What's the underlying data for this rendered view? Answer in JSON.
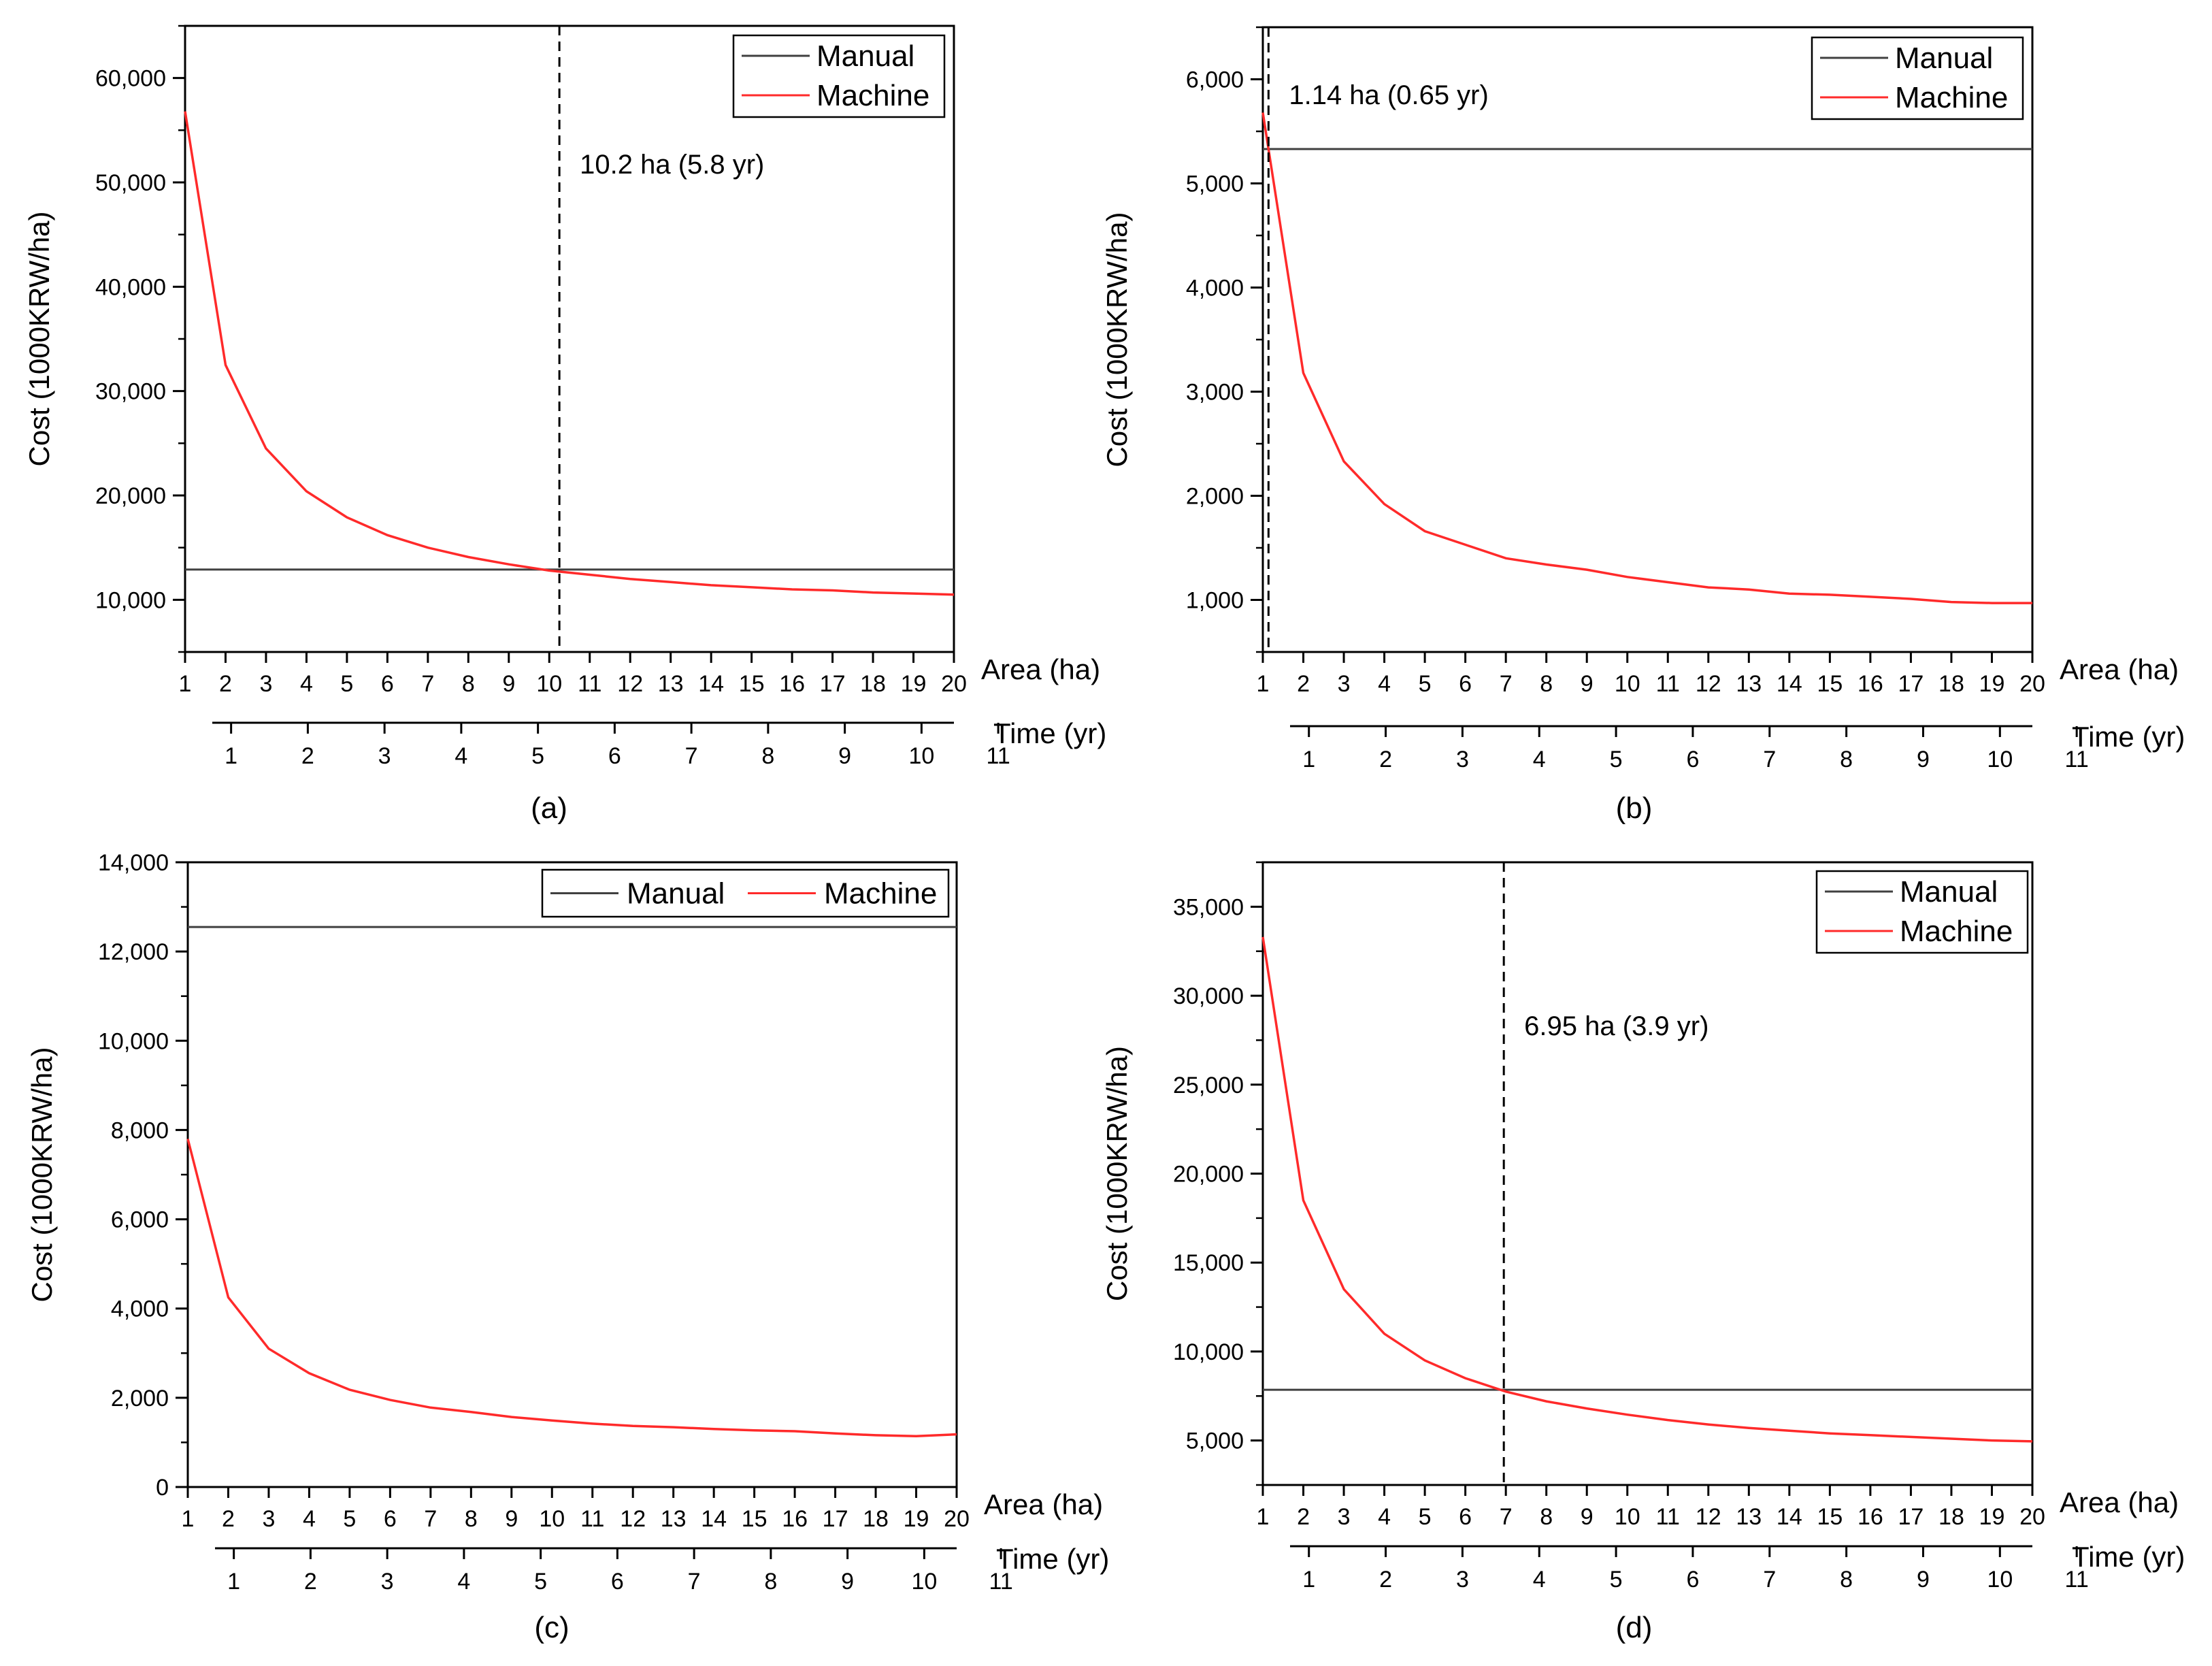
{
  "chart_data": [
    {
      "type": "line",
      "panel": "(a)",
      "ylabel": "Cost (1000KRW/ha)",
      "xlabel": "Area (ha)",
      "x2label": "Time (yr)",
      "xlim": [
        1,
        20
      ],
      "ylim": [
        5000,
        65000
      ],
      "yticks": [
        10000,
        20000,
        30000,
        40000,
        50000,
        60000
      ],
      "ytick_labels": [
        "10,000",
        "20,000",
        "30,000",
        "40,000",
        "50,000",
        "60,000"
      ],
      "yminor": [
        5000,
        15000,
        25000,
        35000,
        45000,
        55000,
        65000
      ],
      "xticks": [
        1,
        2,
        3,
        4,
        5,
        6,
        7,
        8,
        9,
        10,
        11,
        12,
        13,
        14,
        15,
        16,
        17,
        18,
        19,
        20
      ],
      "xtick_labels": [
        "1",
        "2",
        "3",
        "4",
        "5",
        "6",
        "7",
        "8",
        "9",
        "10",
        "11",
        "12",
        "13",
        "14",
        "15",
        "16",
        "17",
        "18",
        "19",
        "20"
      ],
      "t_ticks": [
        1,
        2,
        3,
        4,
        5,
        6,
        7,
        8,
        9,
        10,
        11
      ],
      "t_tick_labels": [
        "1",
        "2",
        "3",
        "4",
        "5",
        "6",
        "7",
        "8",
        "9",
        "10",
        "11"
      ],
      "legend": [
        "Manual",
        "Machine"
      ],
      "legend_layout": "stacked",
      "series": [
        {
          "name": "Manual",
          "color": "#404040",
          "x": [
            1,
            20
          ],
          "y": [
            12900,
            12900
          ]
        },
        {
          "name": "Machine",
          "color": "#ff2a2a",
          "x": [
            1,
            2,
            3,
            4,
            5,
            6,
            7,
            8,
            9,
            10,
            11,
            12,
            13,
            14,
            15,
            16,
            17,
            18,
            19,
            20
          ],
          "y": [
            56800,
            32500,
            24500,
            20400,
            17900,
            16200,
            15000,
            14100,
            13400,
            12800,
            12400,
            12000,
            11700,
            11400,
            11200,
            11000,
            10900,
            10700,
            10600,
            10500
          ]
        }
      ],
      "crossover_x": 10.25,
      "annotation": "10.2 ha (5.8 yr)"
    },
    {
      "type": "line",
      "panel": "(b)",
      "ylabel": "Cost (1000KRW/ha)",
      "xlabel": "Area (ha)",
      "x2label": "Time (yr)",
      "xlim": [
        1,
        20
      ],
      "ylim": [
        500,
        6500
      ],
      "yticks": [
        1000,
        2000,
        3000,
        4000,
        5000,
        6000
      ],
      "ytick_labels": [
        "1,000",
        "2,000",
        "3,000",
        "4,000",
        "5,000",
        "6,000"
      ],
      "yminor": [
        500,
        1500,
        2500,
        3500,
        4500,
        5500,
        6500
      ],
      "xticks": [
        1,
        2,
        3,
        4,
        5,
        6,
        7,
        8,
        9,
        10,
        11,
        12,
        13,
        14,
        15,
        16,
        17,
        18,
        19,
        20
      ],
      "xtick_labels": [
        "1",
        "2",
        "3",
        "4",
        "5",
        "6",
        "7",
        "8",
        "9",
        "10",
        "11",
        "12",
        "13",
        "14",
        "15",
        "16",
        "17",
        "18",
        "19",
        "20"
      ],
      "t_ticks": [
        1,
        2,
        3,
        4,
        5,
        6,
        7,
        8,
        9,
        10,
        11
      ],
      "t_tick_labels": [
        "1",
        "2",
        "3",
        "4",
        "5",
        "6",
        "7",
        "8",
        "9",
        "10",
        "11"
      ],
      "legend": [
        "Manual",
        "Machine"
      ],
      "legend_layout": "stacked",
      "series": [
        {
          "name": "Manual",
          "color": "#404040",
          "x": [
            1,
            20
          ],
          "y": [
            5330,
            5330
          ]
        },
        {
          "name": "Machine",
          "color": "#ff2a2a",
          "x": [
            1,
            2,
            3,
            4,
            5,
            6,
            7,
            8,
            9,
            10,
            11,
            12,
            13,
            14,
            15,
            16,
            17,
            18,
            19,
            20
          ],
          "y": [
            5680,
            3180,
            2330,
            1920,
            1660,
            1530,
            1400,
            1340,
            1290,
            1220,
            1170,
            1120,
            1100,
            1060,
            1050,
            1030,
            1010,
            980,
            970,
            970
          ]
        }
      ],
      "crossover_x": 1.14,
      "annotation": "1.14 ha (0.65 yr)"
    },
    {
      "type": "line",
      "panel": "(c)",
      "ylabel": "Cost (1000KRW/ha)",
      "xlabel": "Area (ha)",
      "x2label": "Time (yr)",
      "xlim": [
        1,
        20
      ],
      "ylim": [
        0,
        14000
      ],
      "yticks": [
        0,
        2000,
        4000,
        6000,
        8000,
        10000,
        12000,
        14000
      ],
      "ytick_labels": [
        "0",
        "2,000",
        "4,000",
        "6,000",
        "8,000",
        "10,000",
        "12,000",
        "14,000"
      ],
      "yminor": [
        1000,
        3000,
        5000,
        7000,
        9000,
        11000,
        13000
      ],
      "xticks": [
        1,
        2,
        3,
        4,
        5,
        6,
        7,
        8,
        9,
        10,
        11,
        12,
        13,
        14,
        15,
        16,
        17,
        18,
        19,
        20
      ],
      "xtick_labels": [
        "1",
        "2",
        "3",
        "4",
        "5",
        "6",
        "7",
        "8",
        "9",
        "10",
        "11",
        "12",
        "13",
        "14",
        "15",
        "16",
        "17",
        "18",
        "19",
        "20"
      ],
      "t_ticks": [
        1,
        2,
        3,
        4,
        5,
        6,
        7,
        8,
        9,
        10,
        11
      ],
      "t_tick_labels": [
        "1",
        "2",
        "3",
        "4",
        "5",
        "6",
        "7",
        "8",
        "9",
        "10",
        "11"
      ],
      "legend": [
        "Manual",
        "Machine"
      ],
      "legend_layout": "row",
      "series": [
        {
          "name": "Manual",
          "color": "#404040",
          "x": [
            1,
            20
          ],
          "y": [
            12550,
            12550
          ]
        },
        {
          "name": "Machine",
          "color": "#ff2a2a",
          "x": [
            1,
            2,
            3,
            4,
            5,
            6,
            7,
            8,
            9,
            10,
            11,
            12,
            13,
            14,
            15,
            16,
            17,
            18,
            19,
            20
          ],
          "y": [
            7800,
            4250,
            3100,
            2550,
            2180,
            1950,
            1780,
            1680,
            1570,
            1490,
            1420,
            1370,
            1340,
            1300,
            1270,
            1250,
            1200,
            1160,
            1140,
            1180
          ]
        }
      ],
      "crossover_x": null,
      "annotation": null
    },
    {
      "type": "line",
      "panel": "(d)",
      "ylabel": "Cost (1000KRW/ha)",
      "xlabel": "Area (ha)",
      "x2label": "Time (yr)",
      "xlim": [
        1,
        20
      ],
      "ylim": [
        2500,
        37500
      ],
      "yticks": [
        5000,
        10000,
        15000,
        20000,
        25000,
        30000,
        35000
      ],
      "ytick_labels": [
        "5,000",
        "10,000",
        "15,000",
        "20,000",
        "25,000",
        "30,000",
        "35,000"
      ],
      "yminor": [
        2500,
        7500,
        12500,
        17500,
        22500,
        27500,
        32500,
        37500
      ],
      "xticks": [
        1,
        2,
        3,
        4,
        5,
        6,
        7,
        8,
        9,
        10,
        11,
        12,
        13,
        14,
        15,
        16,
        17,
        18,
        19,
        20
      ],
      "xtick_labels": [
        "1",
        "2",
        "3",
        "4",
        "5",
        "6",
        "7",
        "8",
        "9",
        "10",
        "11",
        "12",
        "13",
        "14",
        "15",
        "16",
        "17",
        "18",
        "19",
        "20"
      ],
      "t_ticks": [
        1,
        2,
        3,
        4,
        5,
        6,
        7,
        8,
        9,
        10,
        11
      ],
      "t_tick_labels": [
        "1",
        "2",
        "3",
        "4",
        "5",
        "6",
        "7",
        "8",
        "9",
        "10",
        "11"
      ],
      "legend": [
        "Manual",
        "Machine"
      ],
      "legend_layout": "stacked",
      "series": [
        {
          "name": "Manual",
          "color": "#404040",
          "x": [
            1,
            20
          ],
          "y": [
            7850,
            7850
          ]
        },
        {
          "name": "Machine",
          "color": "#ff2a2a",
          "x": [
            1,
            2,
            3,
            4,
            5,
            6,
            7,
            8,
            9,
            10,
            11,
            12,
            13,
            14,
            15,
            16,
            17,
            18,
            19,
            20
          ],
          "y": [
            33300,
            18500,
            13500,
            11000,
            9500,
            8500,
            7750,
            7200,
            6800,
            6450,
            6150,
            5900,
            5700,
            5550,
            5400,
            5300,
            5200,
            5100,
            5000,
            4950
          ]
        }
      ],
      "crossover_x": 6.95,
      "annotation": "6.95 ha (3.9 yr)"
    }
  ]
}
